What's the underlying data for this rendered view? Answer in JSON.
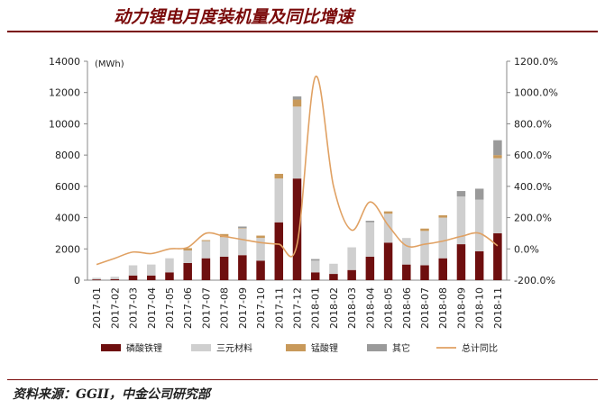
{
  "header": {
    "title": "动力锂电月度装机量及同比增速"
  },
  "footer": {
    "source": "资料来源：GGII，中金公司研究部"
  },
  "colors": {
    "lfp": "#6e0f0f",
    "ternary": "#cfcfcf",
    "lmo": "#c8995a",
    "other": "#9a9a9a",
    "yoy": "#e0a163",
    "rule": "#7a0a0a"
  },
  "chart_data": {
    "type": "bar",
    "stacked": true,
    "unit": "(MWh)",
    "categories": [
      "2017-01",
      "2017-02",
      "2017-03",
      "2017-04",
      "2017-05",
      "2017-06",
      "2017-07",
      "2017-08",
      "2017-09",
      "2017-10",
      "2017-11",
      "2017-12",
      "2018-01",
      "2018-02",
      "2018-03",
      "2018-04",
      "2018-05",
      "2018-06",
      "2018-07",
      "2018-08",
      "2018-09",
      "2018-10",
      "2018-11"
    ],
    "series": [
      {
        "name": "磷酸铁锂",
        "key": "lfp",
        "values": [
          50,
          70,
          300,
          300,
          500,
          1100,
          1400,
          1500,
          1600,
          1250,
          3700,
          6500,
          500,
          400,
          650,
          1500,
          2400,
          1000,
          950,
          1400,
          2300,
          1850,
          3000
        ]
      },
      {
        "name": "三元材料",
        "key": "ternary",
        "values": [
          100,
          150,
          650,
          700,
          900,
          800,
          1100,
          1250,
          1700,
          1450,
          2800,
          4600,
          750,
          650,
          1450,
          2200,
          1850,
          1700,
          2200,
          2600,
          3050,
          3300,
          4800
        ]
      },
      {
        "name": "锰酸锂",
        "key": "lmo",
        "values": [
          0,
          0,
          0,
          0,
          0,
          150,
          60,
          200,
          30,
          150,
          300,
          450,
          0,
          0,
          0,
          0,
          150,
          0,
          150,
          150,
          0,
          0,
          200
        ]
      },
      {
        "name": "其它",
        "key": "other",
        "values": [
          0,
          0,
          0,
          0,
          0,
          0,
          0,
          0,
          100,
          0,
          0,
          200,
          100,
          0,
          0,
          100,
          0,
          0,
          0,
          0,
          350,
          700,
          950
        ]
      }
    ],
    "line": {
      "name": "总计同比",
      "axis": "right",
      "values": [
        -100,
        -60,
        -20,
        -30,
        0,
        10,
        100,
        80,
        60,
        40,
        30,
        30,
        1100,
        400,
        120,
        300,
        150,
        20,
        30,
        50,
        80,
        100,
        20
      ]
    },
    "y_left": {
      "min": 0,
      "max": 14000,
      "ticks": [
        0,
        2000,
        4000,
        6000,
        8000,
        10000,
        12000,
        14000
      ]
    },
    "y_right": {
      "min": -200,
      "max": 1200,
      "ticks": [
        -200,
        0,
        200,
        400,
        600,
        800,
        1000,
        1200
      ],
      "format": "%"
    },
    "legend": {
      "position": "bottom"
    },
    "grid": false
  }
}
